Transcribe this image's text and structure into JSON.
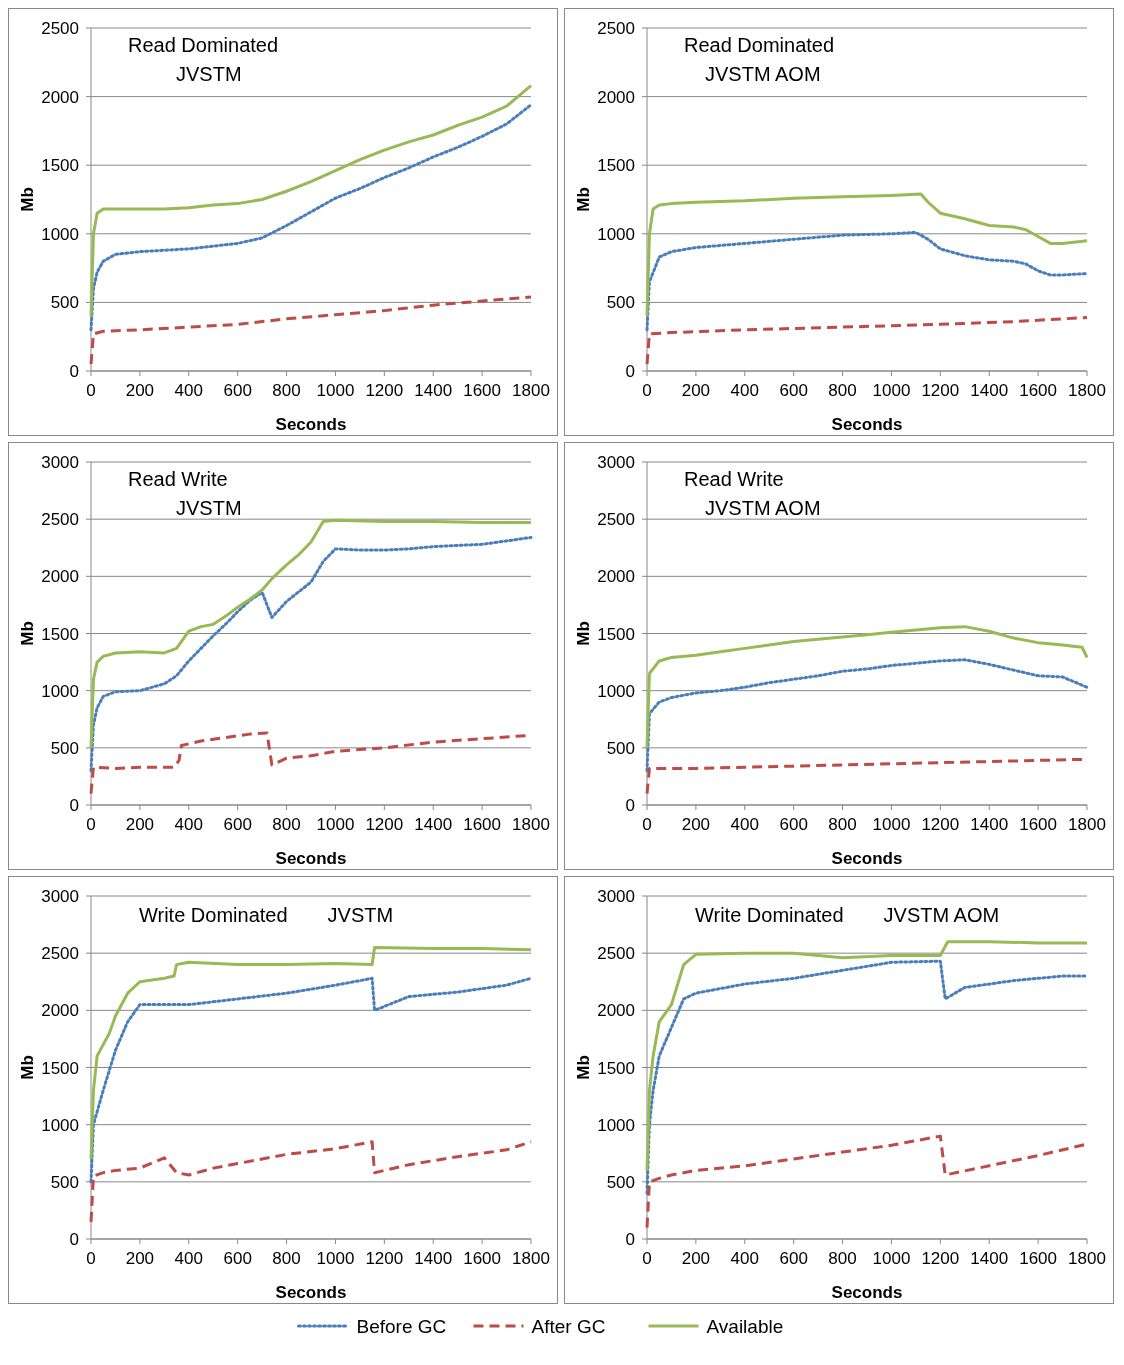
{
  "chart_data": [
    {
      "type": "line",
      "title": "Read Dominated",
      "subtitle": "JVSTM",
      "xlabel": "Seconds",
      "ylabel": "Mb",
      "xlim": [
        0,
        1800
      ],
      "xticks": [
        0,
        200,
        400,
        600,
        800,
        1000,
        1200,
        1400,
        1600,
        1800
      ],
      "ylim": [
        0,
        2500
      ],
      "yticks": [
        0,
        500,
        1000,
        1500,
        2000,
        2500
      ],
      "grid": "y",
      "series": [
        {
          "color": "#4a7ebb",
          "line_style": "dotted",
          "x": [
            0,
            10,
            25,
            50,
            100,
            200,
            300,
            400,
            500,
            600,
            700,
            800,
            900,
            1000,
            1100,
            1200,
            1300,
            1400,
            1500,
            1600,
            1700,
            1800
          ],
          "values": [
            300,
            600,
            720,
            800,
            850,
            870,
            880,
            890,
            910,
            930,
            970,
            1060,
            1160,
            1260,
            1330,
            1410,
            1480,
            1560,
            1630,
            1710,
            1800,
            1940
          ]
        },
        {
          "color": "#be4b48",
          "line_style": "dashed",
          "x": [
            0,
            10,
            50,
            200,
            400,
            600,
            800,
            1000,
            1200,
            1400,
            1600,
            1800
          ],
          "values": [
            50,
            270,
            290,
            300,
            320,
            340,
            380,
            410,
            440,
            480,
            510,
            540
          ]
        },
        {
          "color": "#98b954",
          "line_style": "solid",
          "x": [
            0,
            10,
            25,
            50,
            100,
            200,
            300,
            400,
            500,
            600,
            700,
            800,
            900,
            1000,
            1100,
            1200,
            1300,
            1400,
            1500,
            1600,
            1700,
            1800
          ],
          "values": [
            400,
            1000,
            1150,
            1180,
            1180,
            1180,
            1180,
            1190,
            1210,
            1220,
            1250,
            1310,
            1380,
            1460,
            1540,
            1610,
            1670,
            1720,
            1790,
            1850,
            1930,
            2080
          ]
        }
      ]
    },
    {
      "type": "line",
      "title": "Read Dominated",
      "subtitle": "JVSTM AOM",
      "xlabel": "Seconds",
      "ylabel": "Mb",
      "xlim": [
        0,
        1800
      ],
      "xticks": [
        0,
        200,
        400,
        600,
        800,
        1000,
        1200,
        1400,
        1600,
        1800
      ],
      "ylim": [
        0,
        2500
      ],
      "yticks": [
        0,
        500,
        1000,
        1500,
        2000,
        2500
      ],
      "grid": "y",
      "series": [
        {
          "color": "#4a7ebb",
          "line_style": "dotted",
          "x": [
            0,
            10,
            50,
            100,
            200,
            400,
            600,
            800,
            1000,
            1100,
            1150,
            1200,
            1300,
            1400,
            1500,
            1550,
            1600,
            1650,
            1700,
            1800
          ],
          "values": [
            300,
            650,
            830,
            870,
            900,
            930,
            960,
            990,
            1000,
            1010,
            960,
            890,
            840,
            810,
            800,
            780,
            730,
            700,
            700,
            710
          ]
        },
        {
          "color": "#be4b48",
          "line_style": "dashed",
          "x": [
            0,
            10,
            100,
            400,
            800,
            1200,
            1500,
            1800
          ],
          "values": [
            50,
            270,
            280,
            300,
            320,
            340,
            360,
            390
          ]
        },
        {
          "color": "#98b954",
          "line_style": "solid",
          "x": [
            0,
            10,
            25,
            50,
            100,
            200,
            400,
            600,
            800,
            1000,
            1120,
            1150,
            1200,
            1300,
            1400,
            1500,
            1550,
            1600,
            1650,
            1700,
            1800
          ],
          "values": [
            400,
            1000,
            1180,
            1210,
            1220,
            1230,
            1240,
            1260,
            1270,
            1280,
            1290,
            1230,
            1150,
            1110,
            1060,
            1050,
            1030,
            980,
            930,
            930,
            950
          ]
        }
      ]
    },
    {
      "type": "line",
      "title": "Read Write",
      "subtitle": "JVSTM",
      "xlabel": "Seconds",
      "ylabel": "Mb",
      "xlim": [
        0,
        1800
      ],
      "xticks": [
        0,
        200,
        400,
        600,
        800,
        1000,
        1200,
        1400,
        1600,
        1800
      ],
      "ylim": [
        0,
        3000
      ],
      "yticks": [
        0,
        500,
        1000,
        1500,
        2000,
        2500,
        3000
      ],
      "grid": "y",
      "series": [
        {
          "color": "#4a7ebb",
          "line_style": "dotted",
          "x": [
            0,
            10,
            25,
            50,
            100,
            200,
            300,
            350,
            400,
            450,
            500,
            550,
            600,
            650,
            700,
            740,
            800,
            900,
            950,
            1000,
            1100,
            1200,
            1300,
            1400,
            1500,
            1600,
            1700,
            1800
          ],
          "values": [
            300,
            700,
            850,
            950,
            990,
            1000,
            1060,
            1130,
            1260,
            1370,
            1480,
            1580,
            1690,
            1790,
            1860,
            1640,
            1780,
            1950,
            2130,
            2240,
            2230,
            2230,
            2240,
            2260,
            2270,
            2280,
            2310,
            2340
          ]
        },
        {
          "color": "#be4b48",
          "line_style": "dashed",
          "x": [
            0,
            10,
            100,
            200,
            340,
            360,
            370,
            450,
            550,
            650,
            720,
            740,
            800,
            900,
            1000,
            1200,
            1400,
            1600,
            1800
          ],
          "values": [
            100,
            330,
            320,
            330,
            330,
            390,
            520,
            560,
            590,
            620,
            630,
            350,
            410,
            430,
            470,
            500,
            550,
            580,
            610
          ]
        },
        {
          "color": "#98b954",
          "line_style": "solid",
          "x": [
            0,
            10,
            25,
            50,
            100,
            200,
            300,
            350,
            400,
            450,
            500,
            550,
            600,
            650,
            700,
            740,
            800,
            850,
            900,
            950,
            1000,
            1200,
            1400,
            1600,
            1800
          ],
          "values": [
            500,
            1100,
            1250,
            1300,
            1330,
            1340,
            1330,
            1370,
            1520,
            1560,
            1580,
            1650,
            1730,
            1800,
            1880,
            1980,
            2100,
            2190,
            2300,
            2480,
            2490,
            2480,
            2480,
            2470,
            2470
          ]
        }
      ]
    },
    {
      "type": "line",
      "title": "Read Write",
      "subtitle": "JVSTM AOM",
      "xlabel": "Seconds",
      "ylabel": "Mb",
      "xlim": [
        0,
        1800
      ],
      "xticks": [
        0,
        200,
        400,
        600,
        800,
        1000,
        1200,
        1400,
        1600,
        1800
      ],
      "ylim": [
        0,
        3000
      ],
      "yticks": [
        0,
        500,
        1000,
        1500,
        2000,
        2500,
        3000
      ],
      "grid": "y",
      "series": [
        {
          "color": "#4a7ebb",
          "line_style": "dotted",
          "x": [
            0,
            10,
            50,
            100,
            200,
            300,
            400,
            500,
            600,
            700,
            800,
            900,
            1000,
            1100,
            1200,
            1300,
            1400,
            1500,
            1600,
            1700,
            1800
          ],
          "values": [
            300,
            800,
            900,
            940,
            980,
            1000,
            1030,
            1070,
            1100,
            1130,
            1170,
            1190,
            1220,
            1240,
            1260,
            1270,
            1230,
            1180,
            1130,
            1120,
            1030
          ]
        },
        {
          "color": "#be4b48",
          "line_style": "dashed",
          "x": [
            0,
            10,
            200,
            400,
            600,
            800,
            1000,
            1200,
            1400,
            1600,
            1800
          ],
          "values": [
            100,
            320,
            320,
            330,
            340,
            350,
            360,
            370,
            380,
            390,
            400
          ]
        },
        {
          "color": "#98b954",
          "line_style": "solid",
          "x": [
            0,
            10,
            50,
            100,
            200,
            300,
            400,
            500,
            600,
            700,
            800,
            900,
            1000,
            1100,
            1200,
            1300,
            1400,
            1500,
            1600,
            1700,
            1780,
            1800
          ],
          "values": [
            500,
            1150,
            1260,
            1290,
            1310,
            1340,
            1370,
            1400,
            1430,
            1450,
            1470,
            1490,
            1510,
            1530,
            1550,
            1560,
            1520,
            1460,
            1420,
            1400,
            1380,
            1290
          ]
        }
      ]
    },
    {
      "type": "line",
      "title": "Write Dominated",
      "subtitle": "JVSTM",
      "xlabel": "Seconds",
      "ylabel": "Mb",
      "xlim": [
        0,
        1800
      ],
      "xticks": [
        0,
        200,
        400,
        600,
        800,
        1000,
        1200,
        1400,
        1600,
        1800
      ],
      "ylim": [
        0,
        3000
      ],
      "yticks": [
        0,
        500,
        1000,
        1500,
        2000,
        2500,
        3000
      ],
      "grid": "y",
      "series": [
        {
          "color": "#4a7ebb",
          "line_style": "dotted",
          "x": [
            0,
            10,
            50,
            100,
            150,
            200,
            300,
            400,
            600,
            800,
            1000,
            1150,
            1160,
            1300,
            1500,
            1700,
            1800
          ],
          "values": [
            500,
            1000,
            1300,
            1650,
            1900,
            2050,
            2050,
            2050,
            2100,
            2150,
            2220,
            2280,
            2000,
            2120,
            2160,
            2220,
            2280
          ]
        },
        {
          "color": "#be4b48",
          "line_style": "dashed",
          "x": [
            0,
            10,
            50,
            100,
            200,
            300,
            350,
            400,
            500,
            600,
            800,
            1000,
            1150,
            1160,
            1300,
            1500,
            1700,
            1800
          ],
          "values": [
            150,
            550,
            580,
            600,
            620,
            710,
            580,
            560,
            620,
            660,
            740,
            790,
            850,
            580,
            650,
            720,
            780,
            850
          ]
        },
        {
          "color": "#98b954",
          "line_style": "solid",
          "x": [
            0,
            10,
            25,
            50,
            75,
            100,
            150,
            200,
            300,
            340,
            350,
            400,
            600,
            800,
            1000,
            1150,
            1160,
            1400,
            1600,
            1800
          ],
          "values": [
            700,
            1300,
            1600,
            1700,
            1800,
            1950,
            2150,
            2250,
            2280,
            2300,
            2400,
            2420,
            2400,
            2400,
            2410,
            2400,
            2550,
            2540,
            2540,
            2530
          ]
        }
      ]
    },
    {
      "type": "line",
      "title": "Write Dominated",
      "subtitle": "JVSTM AOM",
      "xlabel": "Seconds",
      "ylabel": "Mb",
      "xlim": [
        0,
        1800
      ],
      "xticks": [
        0,
        200,
        400,
        600,
        800,
        1000,
        1200,
        1400,
        1600,
        1800
      ],
      "ylim": [
        0,
        3000
      ],
      "yticks": [
        0,
        500,
        1000,
        1500,
        2000,
        2500,
        3000
      ],
      "grid": "y",
      "legend": "bottom",
      "series": [
        {
          "name": "Before GC",
          "color": "#4a7ebb",
          "line_style": "dotted",
          "x": [
            0,
            10,
            25,
            50,
            100,
            150,
            200,
            400,
            600,
            800,
            1000,
            1200,
            1220,
            1300,
            1500,
            1700,
            1800
          ],
          "values": [
            400,
            1000,
            1300,
            1600,
            1850,
            2100,
            2150,
            2230,
            2280,
            2350,
            2420,
            2430,
            2100,
            2200,
            2260,
            2300,
            2300
          ]
        },
        {
          "name": "After GC",
          "color": "#be4b48",
          "line_style": "dashed",
          "x": [
            0,
            10,
            50,
            100,
            200,
            400,
            600,
            800,
            1000,
            1200,
            1220,
            1400,
            1600,
            1800
          ],
          "values": [
            100,
            500,
            530,
            560,
            600,
            640,
            700,
            760,
            820,
            900,
            560,
            640,
            730,
            830
          ]
        },
        {
          "name": "Available",
          "color": "#98b954",
          "line_style": "solid",
          "x": [
            0,
            10,
            25,
            50,
            100,
            150,
            200,
            400,
            600,
            800,
            1000,
            1200,
            1230,
            1400,
            1600,
            1800
          ],
          "values": [
            600,
            1300,
            1600,
            1900,
            2050,
            2400,
            2490,
            2500,
            2500,
            2460,
            2480,
            2480,
            2600,
            2600,
            2590,
            2590
          ]
        }
      ]
    }
  ]
}
